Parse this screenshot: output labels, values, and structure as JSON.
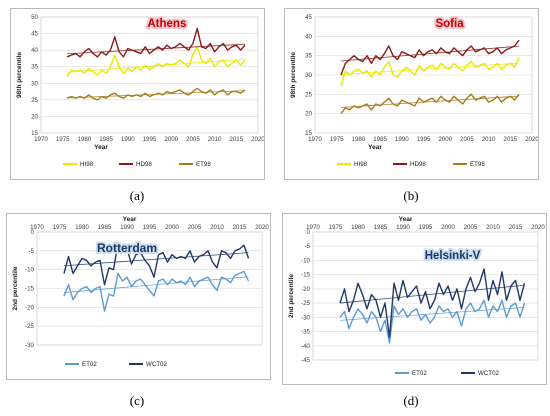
{
  "chart_data": [
    {
      "type": "line",
      "title": "Athens",
      "title_color": "#c00000",
      "title_background": "#f7c6cc",
      "ylabel": "98th percentile",
      "xlabel": "Year",
      "ylim": [
        15,
        50
      ],
      "yticks": [
        15,
        20,
        25,
        30,
        35,
        40,
        45,
        50
      ],
      "xlim": [
        1970,
        2020
      ],
      "xticks": [
        1970,
        1975,
        1980,
        1985,
        1990,
        1995,
        2000,
        2005,
        2010,
        2015,
        2020
      ],
      "x_axis_position": "bottom",
      "grid": true,
      "legend_position": "bottom",
      "x": [
        1976,
        1977,
        1978,
        1979,
        1980,
        1981,
        1982,
        1983,
        1984,
        1985,
        1986,
        1987,
        1988,
        1989,
        1990,
        1991,
        1992,
        1993,
        1994,
        1995,
        1996,
        1997,
        1998,
        1999,
        2000,
        2001,
        2002,
        2003,
        2004,
        2005,
        2006,
        2007,
        2008,
        2009,
        2010,
        2011,
        2012,
        2013,
        2014,
        2015,
        2016,
        2017
      ],
      "series": [
        {
          "name": "HI98",
          "color": "#e8e800",
          "trend": true,
          "values": [
            32.0,
            34.0,
            33.5,
            34.0,
            33.0,
            34.5,
            33.5,
            32.5,
            34.0,
            33.0,
            35.0,
            38.5,
            35.0,
            33.0,
            34.5,
            33.5,
            35.0,
            34.0,
            35.5,
            34.0,
            35.0,
            36.0,
            35.0,
            36.0,
            35.5,
            36.0,
            37.0,
            36.0,
            35.0,
            38.5,
            41.0,
            37.0,
            36.0,
            37.5,
            35.0,
            36.5,
            37.0,
            35.0,
            36.0,
            37.0,
            35.5,
            37.0
          ]
        },
        {
          "name": "HD98",
          "color": "#8b1a1a",
          "trend": true,
          "values": [
            38.0,
            38.5,
            39.0,
            38.0,
            39.5,
            40.5,
            39.0,
            38.0,
            39.5,
            38.5,
            40.0,
            44.0,
            39.5,
            38.0,
            40.5,
            40.0,
            39.5,
            39.0,
            41.0,
            39.0,
            40.0,
            41.0,
            40.0,
            41.5,
            40.5,
            41.0,
            42.0,
            41.0,
            40.0,
            42.0,
            46.5,
            41.0,
            40.5,
            42.0,
            39.5,
            41.0,
            42.0,
            40.0,
            41.0,
            41.5,
            40.0,
            41.5
          ]
        },
        {
          "name": "ET98",
          "color": "#a67c1a",
          "trend": true,
          "values": [
            25.5,
            26.0,
            25.5,
            26.0,
            25.5,
            26.5,
            25.5,
            25.0,
            26.0,
            25.5,
            26.5,
            27.0,
            26.0,
            25.5,
            26.5,
            26.0,
            26.5,
            26.0,
            27.0,
            26.0,
            26.5,
            27.0,
            26.5,
            27.5,
            27.0,
            27.5,
            28.0,
            27.0,
            26.5,
            27.5,
            28.5,
            27.5,
            27.0,
            28.0,
            26.5,
            27.5,
            28.0,
            26.5,
            27.5,
            27.5,
            27.0,
            28.0
          ]
        }
      ]
    },
    {
      "type": "line",
      "title": "Sofia",
      "title_color": "#c00000",
      "title_background": "#f7c6cc",
      "ylabel": "98th percentile",
      "xlabel": "Year",
      "ylim": [
        15,
        45
      ],
      "yticks": [
        15,
        20,
        25,
        30,
        35,
        40,
        45
      ],
      "xlim": [
        1970,
        2020
      ],
      "xticks": [
        1970,
        1975,
        1980,
        1985,
        1990,
        1995,
        2000,
        2005,
        2010,
        2015,
        2020
      ],
      "x_axis_position": "bottom",
      "grid": true,
      "legend_position": "bottom",
      "x": [
        1976,
        1977,
        1978,
        1979,
        1980,
        1981,
        1982,
        1983,
        1984,
        1985,
        1986,
        1987,
        1988,
        1989,
        1990,
        1991,
        1992,
        1993,
        1994,
        1995,
        1996,
        1997,
        1998,
        1999,
        2000,
        2001,
        2002,
        2003,
        2004,
        2005,
        2006,
        2007,
        2008,
        2009,
        2010,
        2011,
        2012,
        2013,
        2014,
        2015,
        2016,
        2017
      ],
      "series": [
        {
          "name": "HI98",
          "color": "#e8e800",
          "trend": true,
          "values": [
            27.0,
            31.0,
            30.0,
            31.0,
            31.5,
            30.5,
            31.0,
            29.5,
            31.0,
            30.0,
            32.0,
            33.5,
            30.0,
            29.5,
            31.0,
            32.0,
            31.0,
            30.0,
            32.5,
            31.0,
            32.0,
            32.5,
            31.5,
            33.0,
            32.0,
            31.5,
            33.0,
            32.0,
            31.0,
            32.5,
            33.5,
            32.0,
            32.5,
            33.0,
            31.5,
            32.0,
            33.0,
            31.5,
            32.5,
            33.0,
            32.0,
            34.5
          ]
        },
        {
          "name": "HD98",
          "color": "#8b1a1a",
          "trend": true,
          "values": [
            30.0,
            33.0,
            34.0,
            35.0,
            34.0,
            33.5,
            35.0,
            33.0,
            35.0,
            34.0,
            35.5,
            37.5,
            35.0,
            34.0,
            36.0,
            35.5,
            35.0,
            34.5,
            36.5,
            35.0,
            36.0,
            36.5,
            35.5,
            37.0,
            36.0,
            35.5,
            37.0,
            36.0,
            35.0,
            36.5,
            37.5,
            36.0,
            36.5,
            37.0,
            35.5,
            36.0,
            37.0,
            35.5,
            36.5,
            37.0,
            37.5,
            39.0
          ]
        },
        {
          "name": "ET98",
          "color": "#a67c1a",
          "trend": true,
          "values": [
            20.0,
            21.5,
            21.0,
            22.0,
            21.5,
            22.0,
            22.5,
            21.0,
            22.5,
            22.0,
            23.0,
            24.0,
            22.5,
            22.0,
            23.5,
            23.0,
            22.5,
            22.0,
            24.0,
            23.0,
            23.5,
            24.0,
            23.0,
            24.5,
            23.5,
            23.0,
            24.5,
            23.5,
            22.5,
            24.0,
            25.0,
            23.5,
            24.0,
            24.5,
            23.0,
            23.5,
            24.5,
            23.0,
            24.0,
            24.5,
            23.5,
            25.0
          ]
        }
      ]
    },
    {
      "type": "line",
      "title": "Rotterdam",
      "title_color": "#1f3864",
      "title_background": "#c9dcf0",
      "ylabel": "2nd percentile",
      "xlabel": "Year",
      "ylim": [
        -30,
        0
      ],
      "yticks": [
        0,
        -5,
        -10,
        -15,
        -20,
        -25,
        -30
      ],
      "xlim": [
        1970,
        2020
      ],
      "xticks": [
        1970,
        1975,
        1980,
        1985,
        1990,
        1995,
        2000,
        2005,
        2010,
        2015,
        2020
      ],
      "x_axis_position": "top",
      "grid": true,
      "legend_position": "bottom",
      "x": [
        1976,
        1977,
        1978,
        1979,
        1980,
        1981,
        1982,
        1983,
        1984,
        1985,
        1986,
        1987,
        1988,
        1989,
        1990,
        1991,
        1992,
        1993,
        1994,
        1995,
        1996,
        1997,
        1998,
        1999,
        2000,
        2001,
        2002,
        2003,
        2004,
        2005,
        2006,
        2007,
        2008,
        2009,
        2010,
        2011,
        2012,
        2013,
        2014,
        2015,
        2016,
        2017
      ],
      "series": [
        {
          "name": "ET02",
          "color": "#5b9bd5",
          "trend": true,
          "values": [
            -17.0,
            -14.0,
            -18.0,
            -16.0,
            -15.0,
            -14.5,
            -16.0,
            -15.0,
            -14.5,
            -21.0,
            -16.5,
            -17.0,
            -11.0,
            -13.0,
            -12.0,
            -14.5,
            -13.0,
            -12.5,
            -14.0,
            -15.5,
            -17.0,
            -13.0,
            -12.5,
            -14.0,
            -12.5,
            -13.5,
            -13.0,
            -14.0,
            -12.0,
            -14.5,
            -13.0,
            -12.5,
            -12.0,
            -14.0,
            -15.5,
            -12.0,
            -12.5,
            -13.5,
            -11.5,
            -11.0,
            -10.5,
            -13.0
          ]
        },
        {
          "name": "WCT02",
          "color": "#1f3864",
          "trend": true,
          "values": [
            -11.0,
            -6.5,
            -11.0,
            -9.0,
            -7.0,
            -7.5,
            -9.0,
            -8.0,
            -7.5,
            -14.0,
            -9.5,
            -10.0,
            -3.0,
            -5.5,
            -4.5,
            -8.5,
            -6.0,
            -5.5,
            -7.5,
            -9.0,
            -12.0,
            -6.0,
            -5.5,
            -8.0,
            -6.0,
            -7.0,
            -6.5,
            -7.0,
            -5.0,
            -8.0,
            -6.5,
            -6.0,
            -5.0,
            -8.0,
            -9.5,
            -5.0,
            -5.5,
            -7.0,
            -5.0,
            -4.5,
            -3.5,
            -7.0
          ]
        }
      ]
    },
    {
      "type": "line",
      "title": "Helsinki-V",
      "title_color": "#1f3864",
      "title_background": "#c9dcf0",
      "ylabel": "2nd percentile",
      "xlabel": "Year",
      "ylim": [
        -45,
        0
      ],
      "yticks": [
        0,
        -5,
        -10,
        -15,
        -20,
        -25,
        -30,
        -35,
        -40,
        -45
      ],
      "xlim": [
        1970,
        2020
      ],
      "xticks": [
        1970,
        1975,
        1980,
        1985,
        1990,
        1995,
        2000,
        2005,
        2010,
        2015,
        2020
      ],
      "x_axis_position": "top",
      "grid": true,
      "legend_position": "bottom",
      "x": [
        1976,
        1977,
        1978,
        1979,
        1980,
        1981,
        1982,
        1983,
        1984,
        1985,
        1986,
        1987,
        1988,
        1989,
        1990,
        1991,
        1992,
        1993,
        1994,
        1995,
        1996,
        1997,
        1998,
        1999,
        2000,
        2001,
        2002,
        2003,
        2004,
        2005,
        2006,
        2007,
        2008,
        2009,
        2010,
        2011,
        2012,
        2013,
        2014,
        2015,
        2016,
        2017
      ],
      "series": [
        {
          "name": "ET02",
          "color": "#5b9bd5",
          "trend": true,
          "values": [
            -30.0,
            -28.0,
            -34.0,
            -30.0,
            -27.0,
            -29.0,
            -32.0,
            -28.0,
            -30.0,
            -35.0,
            -31.0,
            -39.0,
            -26.0,
            -29.0,
            -27.0,
            -30.0,
            -28.0,
            -27.0,
            -31.0,
            -29.0,
            -32.0,
            -30.0,
            -26.0,
            -28.0,
            -27.0,
            -30.0,
            -28.0,
            -33.0,
            -27.0,
            -25.0,
            -28.0,
            -27.0,
            -24.0,
            -30.0,
            -26.0,
            -28.0,
            -24.0,
            -30.0,
            -26.0,
            -25.0,
            -30.0,
            -25.0
          ]
        },
        {
          "name": "WCT02",
          "color": "#1f3864",
          "trend": true,
          "values": [
            -25.0,
            -20.0,
            -28.0,
            -24.0,
            -18.0,
            -22.0,
            -27.0,
            -22.0,
            -24.0,
            -30.0,
            -25.0,
            -37.0,
            -18.0,
            -24.0,
            -17.0,
            -23.0,
            -21.0,
            -19.0,
            -25.0,
            -21.0,
            -27.0,
            -24.0,
            -18.0,
            -22.0,
            -19.0,
            -24.0,
            -20.0,
            -27.0,
            -20.0,
            -16.0,
            -21.0,
            -18.0,
            -13.0,
            -24.0,
            -17.0,
            -22.0,
            -14.0,
            -24.0,
            -19.0,
            -17.0,
            -24.0,
            -18.0
          ]
        }
      ]
    }
  ],
  "captions": [
    "(a)",
    "(b)",
    "(c)",
    "(d)"
  ],
  "colors": {
    "frame": "#b9b9b9",
    "grid": "#d9d9d9",
    "background": "#ffffff"
  }
}
